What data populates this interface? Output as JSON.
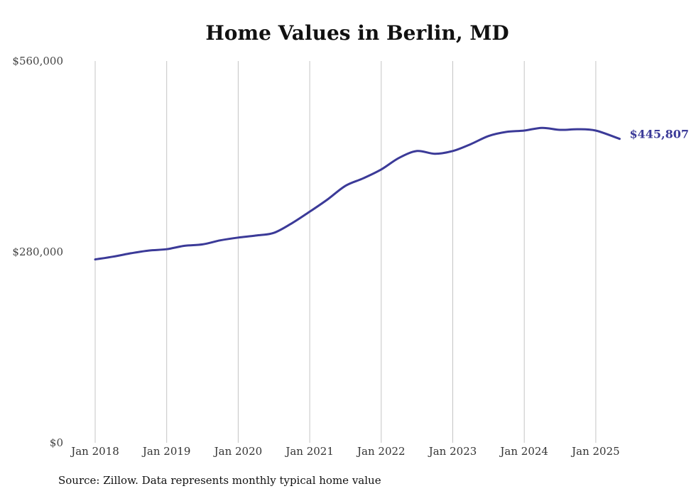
{
  "chart_data": {
    "type": "line",
    "title": "Home Values in Berlin, MD",
    "xlabel": "",
    "ylabel": "",
    "ylim": [
      0,
      560000
    ],
    "y_ticks": [
      {
        "value": 0,
        "label": "$0"
      },
      {
        "value": 280000,
        "label": "$280,000"
      },
      {
        "value": 560000,
        "label": "$560,000"
      }
    ],
    "x_ticks": [
      {
        "value": "2018-01",
        "label": "Jan 2018"
      },
      {
        "value": "2019-01",
        "label": "Jan 2019"
      },
      {
        "value": "2020-01",
        "label": "Jan 2020"
      },
      {
        "value": "2021-01",
        "label": "Jan 2021"
      },
      {
        "value": "2022-01",
        "label": "Jan 2022"
      },
      {
        "value": "2023-01",
        "label": "Jan 2023"
      },
      {
        "value": "2024-01",
        "label": "Jan 2024"
      },
      {
        "value": "2025-01",
        "label": "Jan 2025"
      }
    ],
    "grid": {
      "vertical": true,
      "horizontal": false
    },
    "line_color": "#3b3a98",
    "end_label": "$445,807",
    "series": [
      {
        "x": [
          "2018-01",
          "2018-04",
          "2018-07",
          "2018-10",
          "2019-01",
          "2019-04",
          "2019-07",
          "2019-10",
          "2020-01",
          "2020-04",
          "2020-07",
          "2020-10",
          "2021-01",
          "2021-04",
          "2021-07",
          "2021-10",
          "2022-01",
          "2022-04",
          "2022-07",
          "2022-10",
          "2023-01",
          "2023-04",
          "2023-07",
          "2023-10",
          "2024-01",
          "2024-04",
          "2024-07",
          "2024-10",
          "2025-01",
          "2025-05"
        ],
        "values": [
          269000,
          273000,
          278000,
          282000,
          284000,
          289000,
          291000,
          297000,
          301000,
          304000,
          308000,
          322000,
          339000,
          357000,
          377000,
          388000,
          401000,
          418000,
          428000,
          424000,
          428000,
          438000,
          450000,
          456000,
          458000,
          462000,
          459000,
          460000,
          458000,
          445807
        ]
      }
    ]
  },
  "footer": {
    "source": "Source: Zillow. Data represents monthly typical home value"
  }
}
